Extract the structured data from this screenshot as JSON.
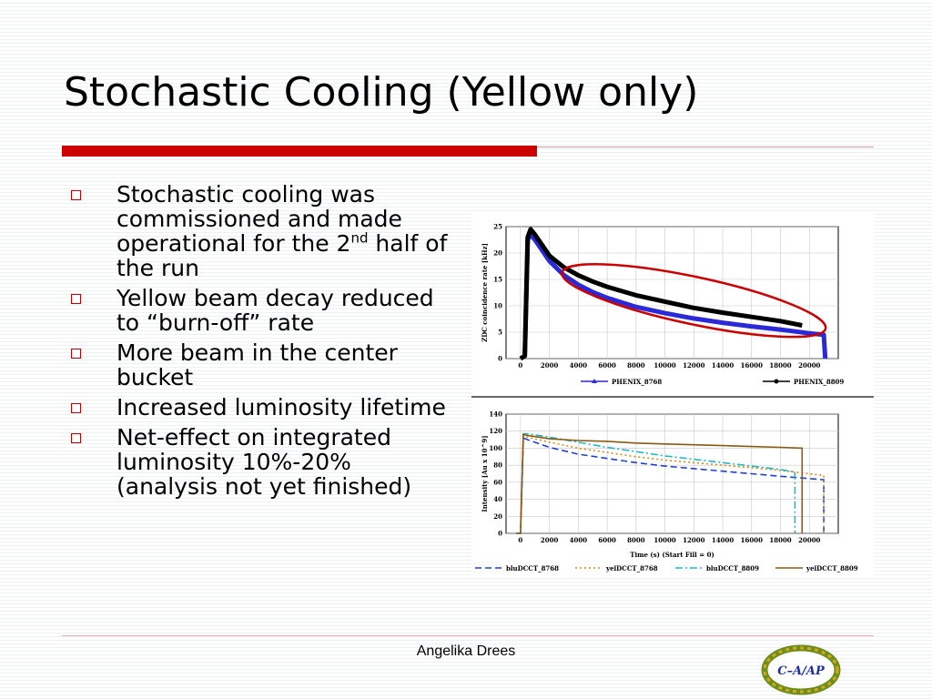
{
  "slide": {
    "title": "Stochastic Cooling (Yellow only)",
    "bullets": [
      {
        "text": "Stochastic cooling was commissioned and made operational for the 2",
        "sup": "nd",
        "after": " half of the run"
      },
      {
        "text": "Yellow beam decay reduced to “burn-off” rate"
      },
      {
        "text": "More beam in the center bucket"
      },
      {
        "text": "Increased luminosity lifetime"
      },
      {
        "text": "Net-effect on integrated luminosity 10%-20% (analysis not yet finished)"
      }
    ],
    "author": "Angelika Drees",
    "logo_text": "C–A/AP",
    "colors": {
      "accent": "#cc0000",
      "bullet": "#c00000",
      "ellipse": "#cc0000"
    }
  },
  "chart_data": [
    {
      "type": "line",
      "title": "",
      "xlabel": "",
      "ylabel": "ZDC coincidence rate [kHz]",
      "xlim": [
        -1000,
        22000
      ],
      "ylim": [
        0,
        25
      ],
      "xticks": [
        0,
        2000,
        4000,
        6000,
        8000,
        10000,
        12000,
        14000,
        16000,
        18000,
        20000
      ],
      "yticks": [
        0,
        5,
        10,
        15,
        20,
        25
      ],
      "grid": true,
      "legend_position": "bottom",
      "annotation": "red ellipse highlighting the difference between the two decay curves",
      "series": [
        {
          "name": "PHENIX_8768",
          "color": "#2a2ad8",
          "marker": "triangle",
          "x": [
            0,
            300,
            500,
            700,
            1000,
            1500,
            2000,
            3000,
            4000,
            5000,
            6000,
            8000,
            10000,
            12000,
            14000,
            16000,
            18000,
            20000,
            21000,
            21100
          ],
          "y": [
            0,
            0.5,
            22.5,
            23.5,
            22.5,
            20.5,
            18.5,
            15.8,
            14.0,
            12.6,
            11.5,
            9.8,
            8.6,
            7.6,
            6.8,
            6.1,
            5.5,
            4.8,
            4.5,
            0
          ]
        },
        {
          "name": "PHENIX_8809",
          "color": "#000000",
          "marker": "circle",
          "x": [
            0,
            300,
            500,
            700,
            1000,
            1500,
            2000,
            3000,
            4000,
            5000,
            6000,
            8000,
            10000,
            12000,
            14000,
            16000,
            18000,
            19500
          ],
          "y": [
            0,
            0.5,
            23,
            24.5,
            23.5,
            21.5,
            19.5,
            17.3,
            15.8,
            14.6,
            13.6,
            12.0,
            10.8,
            9.6,
            8.7,
            7.9,
            7.1,
            6.3
          ]
        }
      ]
    },
    {
      "type": "line",
      "title": "",
      "xlabel": "Time (s)  (Start Fill = 0)",
      "ylabel": "Intensity [Au x 10^9]",
      "xlim": [
        -1000,
        22000
      ],
      "ylim": [
        0,
        140
      ],
      "xticks": [
        0,
        2000,
        4000,
        6000,
        8000,
        10000,
        12000,
        14000,
        16000,
        18000,
        20000
      ],
      "yticks": [
        0,
        20,
        40,
        60,
        80,
        100,
        120,
        140
      ],
      "grid": true,
      "legend_position": "bottom",
      "series": [
        {
          "name": "bluDCCT_8768",
          "color": "#1f3fd6",
          "dash": "7,4",
          "x": [
            -300,
            0,
            200,
            500,
            2000,
            4000,
            6000,
            8000,
            10000,
            12000,
            14000,
            16000,
            18000,
            21000,
            21000
          ],
          "y": [
            0,
            0,
            112,
            110,
            101,
            93,
            88,
            83,
            79,
            76,
            73,
            70,
            67,
            63,
            0
          ]
        },
        {
          "name": "yelDCCT_8768",
          "color": "#d68a1a",
          "dash": "2,3",
          "x": [
            -300,
            0,
            200,
            500,
            2000,
            4000,
            6000,
            8000,
            10000,
            12000,
            14000,
            16000,
            18000,
            21000,
            21000
          ],
          "y": [
            0,
            0,
            114,
            113,
            107,
            100,
            95,
            90,
            86,
            83,
            80,
            77,
            74,
            68,
            0
          ]
        },
        {
          "name": "bluDCCT_8809",
          "color": "#23b7c9",
          "dash": "8,3,2,3",
          "x": [
            -300,
            0,
            200,
            500,
            2000,
            4000,
            6000,
            8000,
            10000,
            12000,
            14000,
            16000,
            18000,
            19000,
            19000
          ],
          "y": [
            0,
            0,
            117,
            117,
            113,
            107,
            101,
            96,
            91,
            87,
            83,
            79,
            75,
            72,
            0
          ]
        },
        {
          "name": "yelDCCT_8809",
          "color": "#8b5a12",
          "dash": "",
          "x": [
            -300,
            0,
            200,
            500,
            2000,
            4000,
            6000,
            8000,
            10000,
            12000,
            14000,
            16000,
            18000,
            19500,
            19500
          ],
          "y": [
            0,
            0,
            116,
            115,
            111,
            109,
            108,
            106,
            105,
            104,
            103,
            102,
            101,
            100,
            0
          ]
        }
      ]
    }
  ]
}
